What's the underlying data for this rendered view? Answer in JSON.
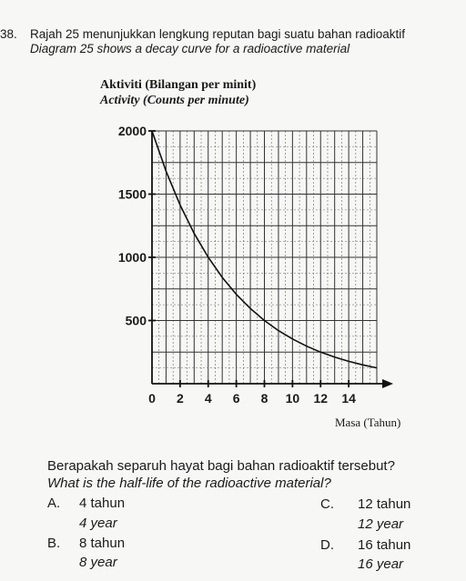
{
  "question": {
    "number": "38.",
    "text_ms": "Rajah 25 menunjukkan lengkung reputan bagi suatu bahan radioaktif",
    "text_en": "Diagram 25 shows a decay curve for a radioactive material"
  },
  "chart_data": {
    "type": "line",
    "ylabel_ms": "Aktiviti (Bilangan per minit)",
    "ylabel_en": "Activity (Counts per minute)",
    "xlabel": "Masa (Tahun)",
    "x_ticks": [
      0,
      2,
      4,
      6,
      8,
      10,
      12,
      14
    ],
    "y_ticks": [
      500,
      1000,
      1500,
      2000
    ],
    "xlim": [
      0,
      16
    ],
    "ylim": [
      0,
      2000
    ],
    "grid": true,
    "series": [
      {
        "x": [
          0,
          1,
          2,
          3,
          4,
          5,
          6,
          7,
          8,
          9,
          10,
          11,
          12,
          13,
          14,
          15,
          16
        ],
        "y": [
          2000,
          1682,
          1414,
          1189,
          1000,
          841,
          707,
          595,
          500,
          420,
          354,
          297,
          250,
          210,
          177,
          149,
          125
        ]
      }
    ]
  },
  "sub_question": {
    "text_ms": "Berapakah separuh hayat bagi bahan radioaktif tersebut?",
    "text_en": "What is the half-life of the radioactive material?"
  },
  "options": [
    {
      "letter": "A.",
      "ms": "4 tahun",
      "en": "4 year"
    },
    {
      "letter": "B.",
      "ms": "8 tahun",
      "en": "8 year"
    },
    {
      "letter": "C.",
      "ms": "12 tahun",
      "en": "12 year"
    },
    {
      "letter": "D.",
      "ms": "16 tahun",
      "en": "16 year"
    }
  ]
}
